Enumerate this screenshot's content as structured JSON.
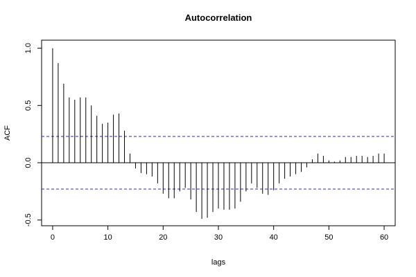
{
  "chart_data": {
    "type": "bar",
    "title": "Autocorrelation",
    "xlabel": "lags",
    "ylabel": "ACF",
    "xlim": [
      -2,
      62
    ],
    "ylim": [
      -0.55,
      1.07
    ],
    "xticks": [
      0,
      10,
      20,
      30,
      40,
      50,
      60
    ],
    "yticks": [
      -0.5,
      0.0,
      0.5,
      1.0
    ],
    "xtick_labels": [
      "0",
      "10",
      "20",
      "30",
      "40",
      "50",
      "60"
    ],
    "ytick_labels": [
      "-0.5",
      "0.0",
      "0.5",
      "1.0"
    ],
    "confidence_bound": 0.23,
    "grid": false,
    "x": [
      0,
      1,
      2,
      3,
      4,
      5,
      6,
      7,
      8,
      9,
      10,
      11,
      12,
      13,
      14,
      15,
      16,
      17,
      18,
      19,
      20,
      21,
      22,
      23,
      24,
      25,
      26,
      27,
      28,
      29,
      30,
      31,
      32,
      33,
      34,
      35,
      36,
      37,
      38,
      39,
      40,
      41,
      42,
      43,
      44,
      45,
      46,
      47,
      48,
      49,
      50,
      51,
      52,
      53,
      54,
      55,
      56,
      57,
      58,
      59,
      60
    ],
    "values": [
      1.0,
      0.87,
      0.69,
      0.57,
      0.55,
      0.57,
      0.57,
      0.5,
      0.41,
      0.34,
      0.35,
      0.42,
      0.43,
      0.28,
      0.08,
      -0.05,
      -0.09,
      -0.1,
      -0.12,
      -0.18,
      -0.27,
      -0.31,
      -0.31,
      -0.25,
      -0.22,
      -0.32,
      -0.43,
      -0.49,
      -0.48,
      -0.43,
      -0.4,
      -0.41,
      -0.41,
      -0.4,
      -0.34,
      -0.25,
      -0.18,
      -0.22,
      -0.27,
      -0.28,
      -0.24,
      -0.18,
      -0.14,
      -0.12,
      -0.1,
      -0.08,
      -0.04,
      0.03,
      0.08,
      0.06,
      0.02,
      0.01,
      0.02,
      0.05,
      0.05,
      0.06,
      0.06,
      0.05,
      0.06,
      0.08,
      0.08
    ]
  }
}
